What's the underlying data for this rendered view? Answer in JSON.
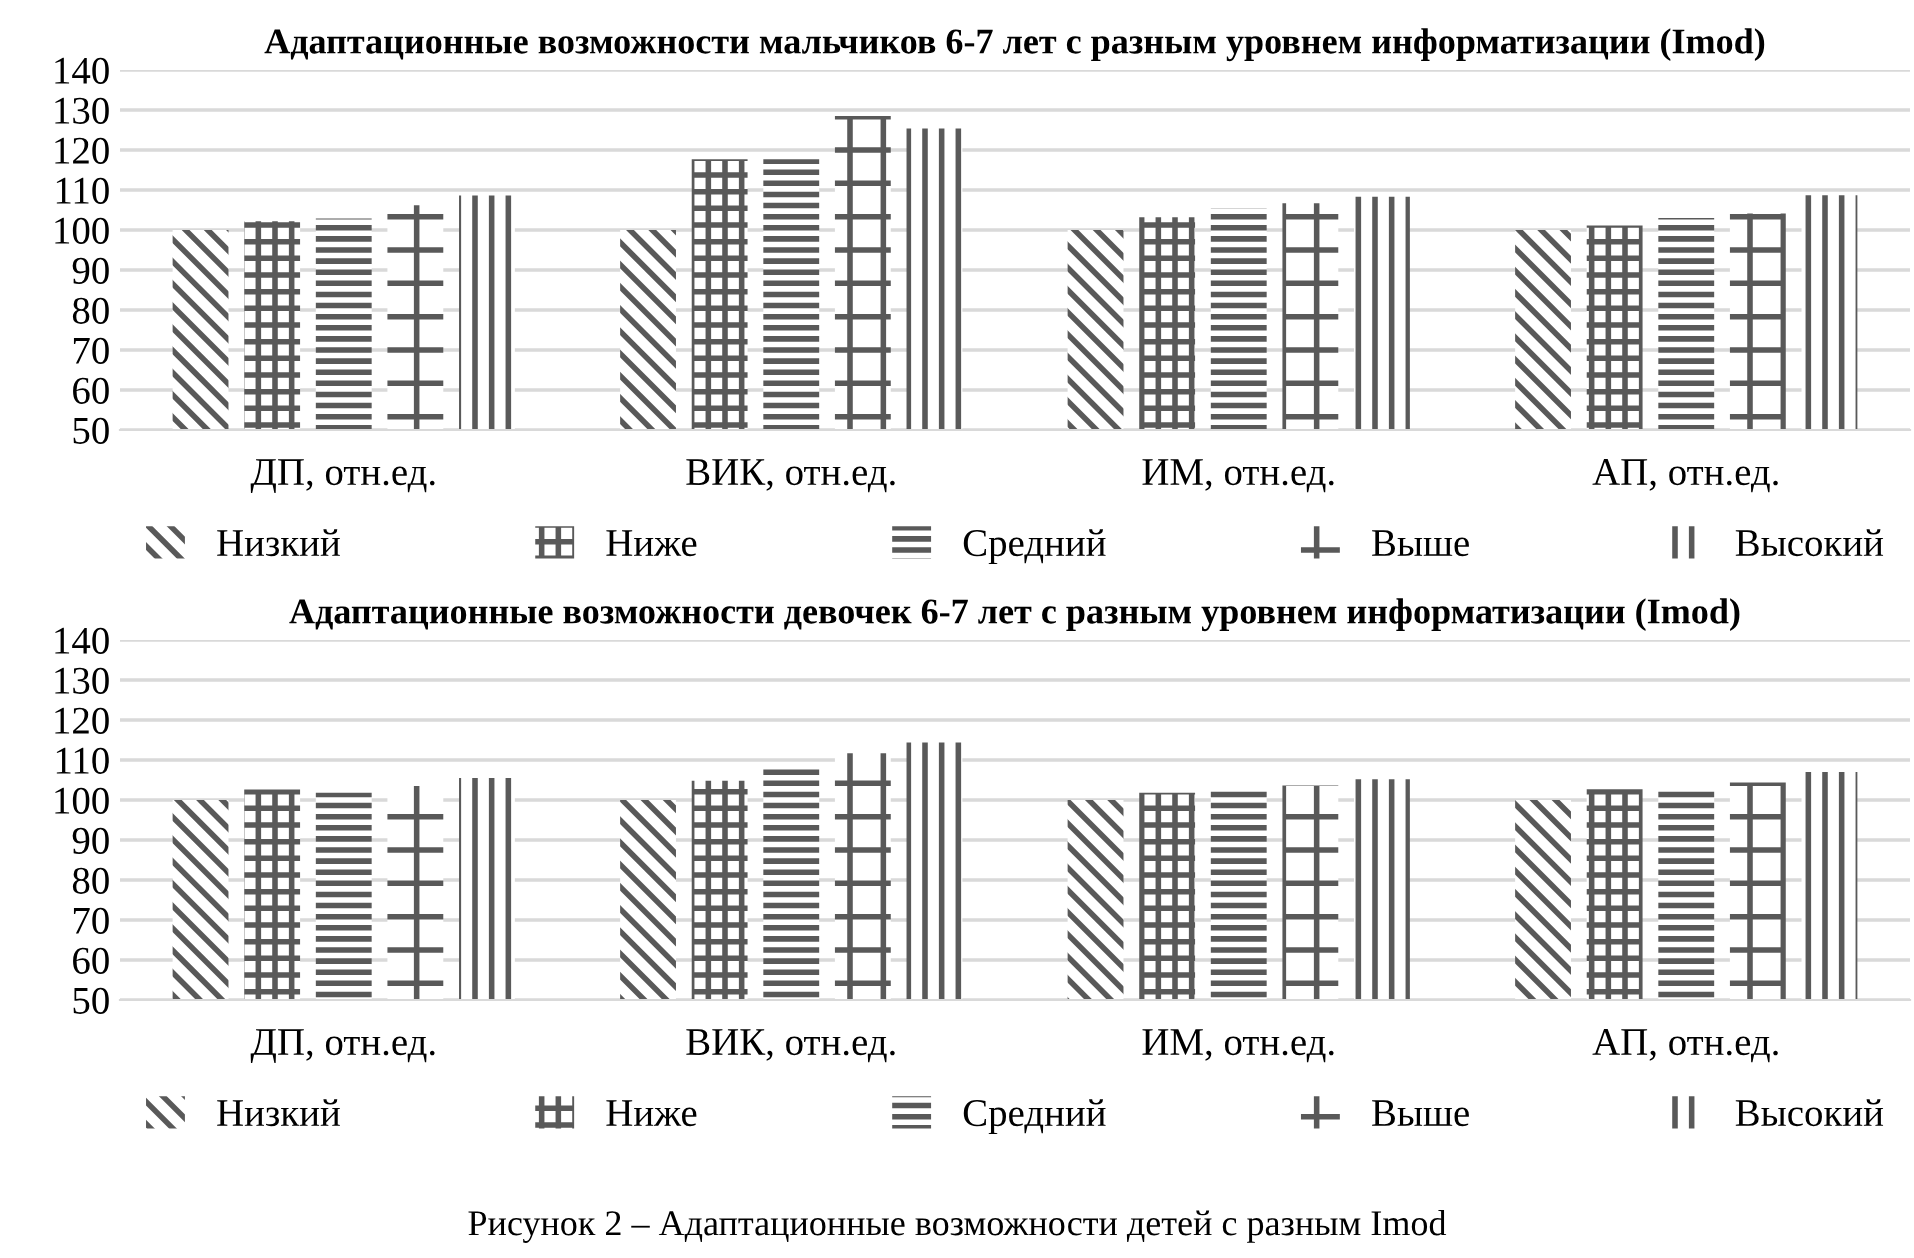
{
  "chart_data": [
    {
      "type": "bar",
      "title": "Адаптационные возможности мальчиков 6-7 лет с разным уровнем информатизации (Imod)",
      "categories": [
        "ДП, отн.ед.",
        "ВИК, отн.ед.",
        "ИМ, отн.ед.",
        "АП, отн.ед."
      ],
      "series": [
        {
          "name": "Низкий",
          "color": "#595959",
          "values": [
            100,
            100,
            100,
            100
          ]
        },
        {
          "name": "Ниже",
          "color": "#595959",
          "values": [
            102.2,
            117.7,
            103.2,
            101.1
          ]
        },
        {
          "name": "Средний",
          "color": "#595959",
          "values": [
            102.9,
            117.7,
            105.5,
            103
          ]
        },
        {
          "name": "Выше",
          "color": "#595959",
          "values": [
            106.2,
            128.5,
            106.7,
            104.1
          ]
        },
        {
          "name": "Высокий",
          "color": "#595959",
          "values": [
            108.6,
            125.4,
            108.3,
            108.7
          ]
        }
      ],
      "ylim": [
        50,
        140
      ],
      "yticks": [
        50,
        60,
        70,
        80,
        90,
        100,
        110,
        120,
        130,
        140
      ],
      "grid": "y",
      "legend": "bottom"
    },
    {
      "type": "bar",
      "title": "Адаптационные возможности девочек 6-7 лет с разным уровнем информатизации (Imod)",
      "categories": [
        "ДП, отн.ед.",
        "ВИК, отн.ед.",
        "ИМ, отн.ед.",
        "АП, отн.ед."
      ],
      "series": [
        {
          "name": "Низкий",
          "color": "#595959",
          "values": [
            100,
            100,
            100,
            100
          ]
        },
        {
          "name": "Ниже",
          "color": "#595959",
          "values": [
            102.6,
            104.8,
            101.8,
            102.7
          ]
        },
        {
          "name": "Средний",
          "color": "#595959",
          "values": [
            101.8,
            107.9,
            102.6,
            102.9
          ]
        },
        {
          "name": "Выше",
          "color": "#595959",
          "values": [
            103.5,
            111.7,
            103.6,
            104.4
          ]
        },
        {
          "name": "Высокий",
          "color": "#595959",
          "values": [
            105.5,
            114.4,
            105.2,
            107
          ]
        }
      ],
      "ylim": [
        50,
        140
      ],
      "yticks": [
        50,
        60,
        70,
        80,
        90,
        100,
        110,
        120,
        130,
        140
      ],
      "grid": "y",
      "legend": "bottom",
      "annotations": [
        "Рисунок 2 – Адаптационные возможности детей с разным Imod"
      ]
    }
  ]
}
